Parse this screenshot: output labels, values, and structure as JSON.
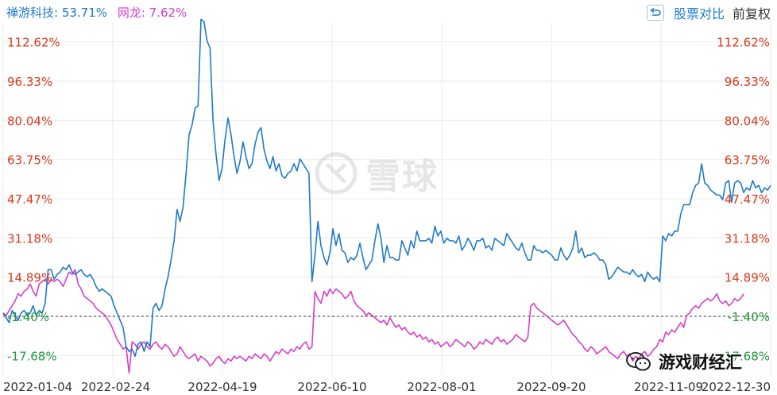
{
  "legend": {
    "series1": "禅游科技: 53.71%",
    "series2": "网龙: 7.62%"
  },
  "controls": {
    "compare_label": "股票对比",
    "adjust_label": "前复权"
  },
  "watermark": {
    "text": "雪球"
  },
  "overlay": {
    "source_label": "游戏财经汇"
  },
  "colors": {
    "series1": "#1f7ac8",
    "series2": "#d63ec8",
    "positive_tick": "#d9381e",
    "negative_tick": "#1f9a3a",
    "axis_text": "#333333",
    "grid": "#ebebeb",
    "baseline": "#333333"
  },
  "chart_data": {
    "type": "line",
    "xlabel": "",
    "ylabel": "",
    "ylim": [
      -25.83,
      120.77
    ],
    "yticks": [
      112.62,
      96.33,
      80.04,
      63.75,
      47.47,
      31.18,
      14.89,
      -1.4,
      -17.68
    ],
    "ytick_labels": [
      "112.62%",
      "96.33%",
      "80.04%",
      "63.75%",
      "47.47%",
      "31.18%",
      "14.89%",
      "-1.40%",
      "-17.68%"
    ],
    "baseline": -1.4,
    "x_labels": [
      "2022-01-04",
      "2022-02-24",
      "2022-04-19",
      "2022-06-10",
      "2022-08-01",
      "2022-09-20",
      "2022-11-09",
      "2022-12-30"
    ],
    "grid": true,
    "legend_position": "top-left",
    "series": [
      {
        "name": "禅游科技",
        "values": [
          0,
          -2,
          -4,
          1,
          -1,
          -3,
          0,
          1,
          -1,
          0,
          3,
          -1,
          1,
          0,
          4,
          18,
          18,
          14,
          16,
          17,
          19,
          18,
          20,
          17,
          16,
          17,
          18,
          16,
          15,
          16,
          14,
          11,
          9,
          10,
          9,
          8,
          7,
          3,
          0,
          -3,
          -6,
          -14,
          -16,
          -15,
          -18,
          -13,
          -12,
          -16,
          -12,
          -14,
          2,
          4,
          1,
          3,
          10,
          15,
          22,
          30,
          43,
          38,
          44,
          58,
          74,
          78,
          85,
          86,
          122,
          121,
          113,
          110,
          80,
          66,
          55,
          60,
          72,
          81,
          74,
          65,
          58,
          63,
          71,
          65,
          60,
          62,
          70,
          75,
          77,
          68,
          63,
          60,
          65,
          59,
          62,
          57,
          56,
          58,
          59,
          62,
          59,
          64,
          62,
          60,
          58,
          13,
          24,
          38,
          28,
          23,
          20,
          25,
          35,
          28,
          33,
          26,
          25,
          21,
          23,
          22,
          24,
          29,
          23,
          18,
          20,
          22,
          30,
          37,
          31,
          21,
          28,
          23,
          23,
          22,
          22,
          30,
          27,
          24,
          30,
          27,
          34,
          30,
          30,
          30,
          31,
          29,
          36,
          32,
          34,
          29,
          31,
          30,
          30,
          29,
          32,
          26,
          28,
          31,
          29,
          26,
          30,
          30,
          31,
          27,
          28,
          26,
          31,
          30,
          29,
          28,
          33,
          31,
          29,
          27,
          26,
          29,
          25,
          22,
          22,
          28,
          26,
          26,
          25,
          26,
          25,
          24,
          22,
          22,
          27,
          24,
          22,
          24,
          27,
          34,
          25,
          27,
          23,
          24,
          24,
          25,
          24,
          22,
          22,
          20,
          14,
          15,
          17,
          19,
          18,
          17,
          17,
          16,
          18,
          16,
          15,
          16,
          13,
          17,
          15,
          14,
          15,
          13,
          32,
          30,
          33,
          32,
          34,
          34,
          41,
          45,
          45,
          45,
          50,
          53,
          54,
          62,
          54,
          53,
          51,
          50,
          49,
          49,
          47,
          54,
          55,
          46,
          54,
          55,
          54,
          50,
          52,
          51,
          55,
          52,
          53,
          50,
          52,
          51,
          53
        ]
      },
      {
        "name": "网龙",
        "values": [
          0,
          -1,
          1,
          3,
          5,
          8,
          7,
          9,
          10,
          12,
          9,
          7,
          12,
          13,
          14,
          12,
          14,
          13,
          14,
          13,
          11,
          14,
          17,
          16,
          18,
          12,
          10,
          7,
          6,
          5,
          4,
          2,
          1,
          0,
          -1,
          -3,
          -5,
          -8,
          -11,
          -13,
          -15,
          -14,
          -25,
          -12,
          -13,
          -15,
          -13,
          -12,
          -14,
          -15,
          -13,
          -12,
          -14,
          -15,
          -13,
          -14,
          -16,
          -18,
          -17,
          -14,
          -16,
          -18,
          -19,
          -18,
          -17,
          -20,
          -18,
          -19,
          -20,
          -22,
          -21,
          -19,
          -18,
          -20,
          -21,
          -19,
          -20,
          -18,
          -19,
          -18,
          -19,
          -20,
          -18,
          -19,
          -17,
          -18,
          -19,
          -17,
          -18,
          -20,
          -18,
          -16,
          -17,
          -15,
          -16,
          -17,
          -15,
          -16,
          -14,
          -15,
          -13,
          -12,
          -15,
          -14,
          9,
          6,
          4,
          9,
          7,
          10,
          8,
          10,
          9,
          8,
          6,
          7,
          9,
          5,
          3,
          2,
          1,
          -1,
          0,
          -1,
          -2,
          -3,
          -4,
          -3,
          -5,
          -2,
          -4,
          -6,
          -5,
          -7,
          -6,
          -8,
          -9,
          -8,
          -10,
          -9,
          -11,
          -10,
          -12,
          -11,
          -13,
          -12,
          -14,
          -13,
          -12,
          -14,
          -13,
          -11,
          -12,
          -13,
          -14,
          -12,
          -13,
          -15,
          -14,
          -12,
          -13,
          -11,
          -12,
          -13,
          -11,
          -10,
          -12,
          -11,
          -13,
          -12,
          -11,
          -9,
          -10,
          -11,
          -12,
          -10,
          3,
          4,
          2,
          1,
          0,
          -1,
          -2,
          -3,
          -4,
          -5,
          -4,
          -3,
          -5,
          -7,
          -9,
          -10,
          -12,
          -13,
          -15,
          -16,
          -14,
          -15,
          -17,
          -16,
          -15,
          -14,
          -16,
          -17,
          -18,
          -19,
          -17,
          -16,
          -18,
          -17,
          -20,
          -18,
          -19,
          -17,
          -16,
          -18,
          -17,
          -15,
          -14,
          -11,
          -12,
          -8,
          -9,
          -7,
          -8,
          -6,
          -4,
          -6,
          -1,
          0,
          2,
          3,
          2,
          4,
          5,
          6,
          5,
          6,
          8,
          5,
          4,
          5,
          3,
          4,
          6,
          5,
          6,
          8
        ]
      }
    ]
  }
}
